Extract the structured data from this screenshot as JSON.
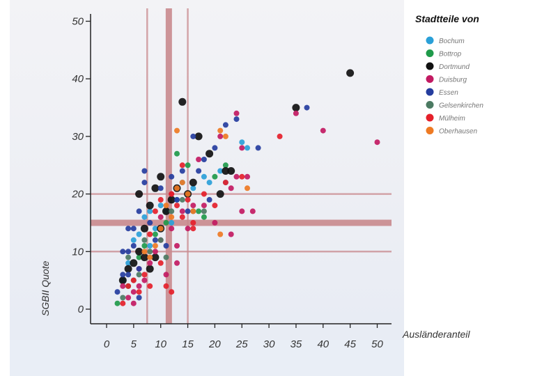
{
  "chart_data": {
    "type": "scatter",
    "title": "",
    "xlabel": "Ausländeranteil",
    "ylabel": "SGBII Quote",
    "xlim": [
      0,
      52
    ],
    "ylim": [
      0,
      52
    ],
    "xticks": [
      0,
      5,
      10,
      15,
      20,
      25,
      30,
      35,
      40,
      45,
      50
    ],
    "yticks": [
      0,
      10,
      20,
      30,
      40,
      50
    ],
    "grid": false,
    "legend": {
      "title": "Stadtteile von",
      "placement": "right"
    },
    "reference_lines": {
      "vertical": [
        7.5,
        11.5,
        15
      ],
      "horizontal": [
        10,
        15,
        20
      ],
      "color": "#c98a8e"
    },
    "series": [
      {
        "name": "Bochum",
        "color": "#2aa0d8",
        "marker_size": 4,
        "points": [
          [
            3,
            5
          ],
          [
            4,
            8
          ],
          [
            5,
            12
          ],
          [
            6,
            13
          ],
          [
            7,
            16
          ],
          [
            8,
            17
          ],
          [
            9,
            14
          ],
          [
            10,
            18
          ],
          [
            11,
            17
          ],
          [
            12,
            15
          ],
          [
            14,
            22
          ],
          [
            16,
            21
          ],
          [
            18,
            23
          ],
          [
            19,
            22
          ],
          [
            21,
            24
          ],
          [
            22,
            22
          ],
          [
            25,
            29
          ],
          [
            26,
            28
          ],
          [
            13,
            19
          ],
          [
            8,
            11
          ]
        ]
      },
      {
        "name": "Bottrop",
        "color": "#1f9a4a",
        "marker_size": 4,
        "points": [
          [
            2,
            1
          ],
          [
            4,
            4
          ],
          [
            6,
            9
          ],
          [
            7,
            11
          ],
          [
            9,
            13
          ],
          [
            11,
            15
          ],
          [
            13,
            27
          ],
          [
            15,
            25
          ],
          [
            17,
            17
          ],
          [
            18,
            16
          ],
          [
            20,
            23
          ],
          [
            22,
            25
          ]
        ]
      },
      {
        "name": "Dortmund",
        "color": "#111111",
        "marker_size": 5.5,
        "points": [
          [
            45,
            41
          ],
          [
            35,
            35
          ],
          [
            14,
            36
          ],
          [
            17,
            30
          ],
          [
            22,
            24
          ],
          [
            23,
            24
          ],
          [
            21,
            20
          ],
          [
            13,
            21
          ],
          [
            15,
            20
          ],
          [
            12,
            19
          ],
          [
            10,
            23
          ],
          [
            9,
            21
          ],
          [
            11,
            17
          ],
          [
            8,
            18
          ],
          [
            7,
            14
          ],
          [
            6,
            10
          ],
          [
            7,
            9
          ],
          [
            5,
            8
          ],
          [
            4,
            7
          ],
          [
            3,
            5
          ],
          [
            9,
            9
          ],
          [
            6,
            20
          ],
          [
            16,
            22
          ],
          [
            19,
            27
          ],
          [
            10,
            14
          ],
          [
            8,
            7
          ]
        ]
      },
      {
        "name": "Duisburg",
        "color": "#c21a62",
        "marker_size": 4,
        "points": [
          [
            50,
            29
          ],
          [
            40,
            31
          ],
          [
            35,
            34
          ],
          [
            24,
            34
          ],
          [
            25,
            28
          ],
          [
            24,
            23
          ],
          [
            23,
            21
          ],
          [
            26,
            23
          ],
          [
            27,
            17
          ],
          [
            25,
            17
          ],
          [
            23,
            13
          ],
          [
            20,
            15
          ],
          [
            18,
            18
          ],
          [
            16,
            18
          ],
          [
            14,
            17
          ],
          [
            12,
            14
          ],
          [
            13,
            11
          ],
          [
            10,
            12
          ],
          [
            9,
            10
          ],
          [
            8,
            8
          ],
          [
            7,
            5
          ],
          [
            6,
            4
          ],
          [
            5,
            3
          ],
          [
            4,
            2
          ],
          [
            3,
            4
          ],
          [
            5,
            1
          ],
          [
            6,
            7
          ],
          [
            10,
            16
          ],
          [
            12,
            20
          ],
          [
            15,
            14
          ],
          [
            13,
            8
          ],
          [
            11,
            6
          ],
          [
            21,
            30
          ],
          [
            17,
            26
          ]
        ]
      },
      {
        "name": "Essen",
        "color": "#253d9e",
        "marker_size": 4,
        "points": [
          [
            37,
            35
          ],
          [
            28,
            28
          ],
          [
            24,
            33
          ],
          [
            22,
            32
          ],
          [
            20,
            28
          ],
          [
            18,
            26
          ],
          [
            16,
            30
          ],
          [
            14,
            24
          ],
          [
            12,
            23
          ],
          [
            10,
            21
          ],
          [
            7,
            24
          ],
          [
            7,
            22
          ],
          [
            6,
            17
          ],
          [
            5,
            14
          ],
          [
            4,
            14
          ],
          [
            3,
            10
          ],
          [
            4,
            6
          ],
          [
            5,
            11
          ],
          [
            6,
            7
          ],
          [
            9,
            12
          ],
          [
            11,
            11
          ],
          [
            8,
            15
          ],
          [
            13,
            19
          ],
          [
            15,
            17
          ],
          [
            17,
            24
          ],
          [
            19,
            19
          ],
          [
            3,
            6
          ],
          [
            2,
            3
          ],
          [
            4,
            10
          ],
          [
            6,
            2
          ]
        ]
      },
      {
        "name": "Gelsenkirchen",
        "color": "#4b7a62",
        "marker_size": 4,
        "points": [
          [
            3,
            2
          ],
          [
            5,
            5
          ],
          [
            6,
            6
          ],
          [
            8,
            10
          ],
          [
            10,
            12
          ],
          [
            12,
            17
          ],
          [
            14,
            19
          ],
          [
            16,
            17
          ],
          [
            18,
            17
          ],
          [
            11,
            9
          ],
          [
            7,
            12
          ],
          [
            4,
            9
          ]
        ]
      },
      {
        "name": "Mülheim",
        "color": "#e5202a",
        "marker_size": 4,
        "points": [
          [
            32,
            30
          ],
          [
            25,
            23
          ],
          [
            22,
            22
          ],
          [
            20,
            18
          ],
          [
            18,
            20
          ],
          [
            16,
            15
          ],
          [
            14,
            16
          ],
          [
            12,
            20
          ],
          [
            10,
            19
          ],
          [
            9,
            17
          ],
          [
            8,
            13
          ],
          [
            7,
            6
          ],
          [
            6,
            3
          ],
          [
            5,
            5
          ],
          [
            4,
            4
          ],
          [
            3,
            1
          ],
          [
            11,
            4
          ],
          [
            12,
            3
          ],
          [
            14,
            25
          ],
          [
            16,
            14
          ],
          [
            10,
            8
          ],
          [
            8,
            4
          ],
          [
            13,
            18
          ],
          [
            15,
            19
          ]
        ]
      },
      {
        "name": "Oberhausen",
        "color": "#ee7a23",
        "marker_size": 4,
        "points": [
          [
            13,
            31
          ],
          [
            21,
            31
          ],
          [
            22,
            30
          ],
          [
            26,
            21
          ],
          [
            21,
            13
          ],
          [
            15,
            20
          ],
          [
            13,
            21
          ],
          [
            12,
            16
          ],
          [
            9,
            11
          ],
          [
            8,
            9
          ],
          [
            10,
            14
          ],
          [
            14,
            22
          ],
          [
            11,
            18
          ],
          [
            7,
            10
          ],
          [
            16,
            17
          ]
        ]
      }
    ]
  }
}
